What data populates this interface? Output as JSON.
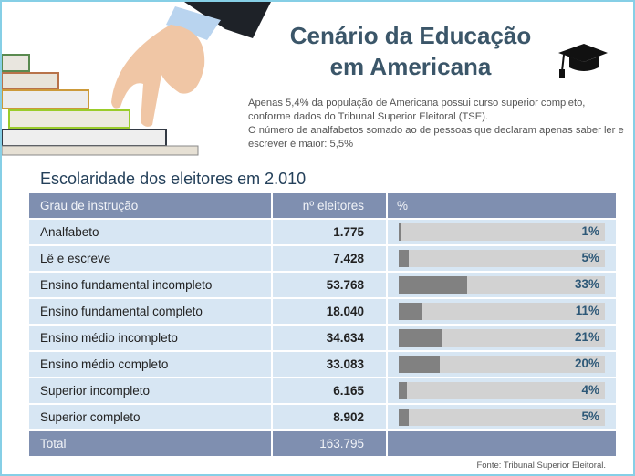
{
  "title": {
    "line1": "Cenário da Educação",
    "line2": "em Americana"
  },
  "intro": [
    "Apenas 5,4% da população de Americana possui curso superior completo, conforme dados do Tribunal Superior Eleitoral (TSE).",
    "O número de analfabetos somado ao de pessoas que declaram apenas saber ler e escrever é maior: 5,5%"
  ],
  "icons": {
    "cap": "graduation-cap-icon",
    "illustration": "hand-walking-on-books"
  },
  "colors": {
    "header": "#7f8fb0",
    "row": "#d7e6f3",
    "bar": "#818181",
    "track": "#d2d2d2",
    "percent_text": "#2d5877",
    "title": "#3b5669"
  },
  "chart_data": {
    "type": "table",
    "title": "Escolaridade dos eleitores em 2.010",
    "columns": [
      "Grau de instrução",
      "nº eleitores",
      "%"
    ],
    "rows": [
      {
        "label": "Analfabeto",
        "count": "1.775",
        "percent": 1,
        "percent_label": "1%"
      },
      {
        "label": "Lê e escreve",
        "count": "7.428",
        "percent": 5,
        "percent_label": "5%"
      },
      {
        "label": "Ensino fundamental incompleto",
        "count": "53.768",
        "percent": 33,
        "percent_label": "33%"
      },
      {
        "label": "Ensino fundamental completo",
        "count": "18.040",
        "percent": 11,
        "percent_label": "11%"
      },
      {
        "label": "Ensino médio incompleto",
        "count": "34.634",
        "percent": 21,
        "percent_label": "21%"
      },
      {
        "label": "Ensino médio completo",
        "count": "33.083",
        "percent": 20,
        "percent_label": "20%"
      },
      {
        "label": "Superior incompleto",
        "count": "6.165",
        "percent": 4,
        "percent_label": "4%"
      },
      {
        "label": "Superior completo",
        "count": "8.902",
        "percent": 5,
        "percent_label": "5%"
      }
    ],
    "total": {
      "label": "Total",
      "count": "163.795"
    },
    "bar_max_percent": 100
  },
  "source": "Fonte: Tribunal Superior Eleitoral."
}
